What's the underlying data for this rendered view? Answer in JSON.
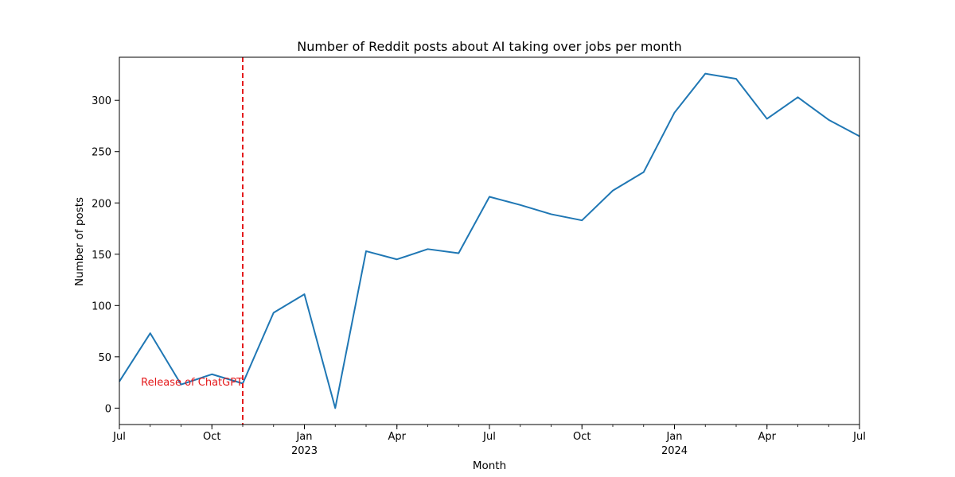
{
  "chart_data": {
    "type": "line",
    "title": "Number of Reddit posts about AI taking over jobs per month",
    "xlabel": "Month",
    "ylabel": "Number of posts",
    "x": [
      "2022-07",
      "2022-08",
      "2022-09",
      "2022-10",
      "2022-11",
      "2022-12",
      "2023-01",
      "2023-02",
      "2023-03",
      "2023-04",
      "2023-05",
      "2023-06",
      "2023-07",
      "2023-08",
      "2023-09",
      "2023-10",
      "2023-11",
      "2023-12",
      "2024-01",
      "2024-02",
      "2024-03",
      "2024-04",
      "2024-05",
      "2024-06",
      "2024-07"
    ],
    "series": [
      {
        "values": [
          26,
          73,
          23,
          33,
          24,
          93,
          111,
          0,
          153,
          145,
          155,
          151,
          206,
          198,
          189,
          183,
          212,
          230,
          288,
          326,
          321,
          282,
          303,
          281,
          265
        ],
        "color": "#1f77b4"
      }
    ],
    "ylim": [
      -16,
      342
    ],
    "y_ticks": [
      "0",
      "50",
      "100",
      "150",
      "200",
      "250",
      "300"
    ],
    "x_ticks": [
      {
        "label": "Jul",
        "sublabel": ""
      },
      {
        "label": "Oct",
        "sublabel": ""
      },
      {
        "label": "Jan",
        "sublabel": "2023"
      },
      {
        "label": "Apr",
        "sublabel": ""
      },
      {
        "label": "Jul",
        "sublabel": ""
      },
      {
        "label": "Oct",
        "sublabel": ""
      },
      {
        "label": "Jan",
        "sublabel": "2024"
      },
      {
        "label": "Apr",
        "sublabel": ""
      },
      {
        "label": "Jul",
        "sublabel": ""
      }
    ],
    "annotations": [
      {
        "type": "vline",
        "x": "2022-11",
        "style": "dashed",
        "color": "#e41a1c",
        "label": "Release of ChatGPT"
      }
    ],
    "grid": false,
    "legend": "none"
  }
}
